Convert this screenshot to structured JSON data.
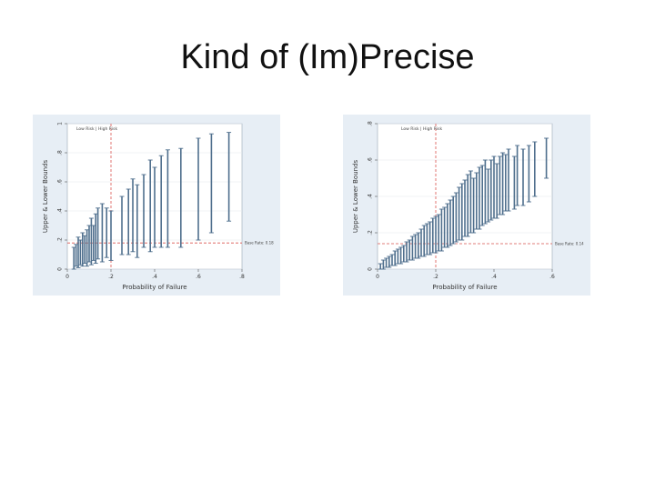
{
  "slide": {
    "title": "Kind of (Im)Precise"
  },
  "chart_data": [
    {
      "type": "errorbar",
      "ylabel": "Upper & Lower Bounds",
      "xlabel": "Probability of Failure",
      "xlim": [
        0,
        0.8
      ],
      "ylim": [
        0,
        1
      ],
      "xticks": [
        "0",
        ".2",
        ".4",
        ".6",
        ".8"
      ],
      "yticks": [
        "0",
        ".2",
        ".4",
        ".6",
        ".8",
        "1"
      ],
      "legend": "Low Risk | High Risk",
      "baseline_label": "Base Rate: 0.18",
      "baseline": 0.18,
      "divider_x": 0.2,
      "colors": {
        "bar": "#4f6f8d",
        "ref": "#d9534f",
        "panel": "#e7eef5",
        "plot": "#ffffff"
      },
      "bars": [
        {
          "x": 0.03,
          "lo": 0.0,
          "hi": 0.15
        },
        {
          "x": 0.04,
          "lo": 0.02,
          "hi": 0.17
        },
        {
          "x": 0.05,
          "lo": 0.01,
          "hi": 0.22
        },
        {
          "x": 0.06,
          "lo": 0.03,
          "hi": 0.2
        },
        {
          "x": 0.07,
          "lo": 0.02,
          "hi": 0.25
        },
        {
          "x": 0.08,
          "lo": 0.04,
          "hi": 0.23
        },
        {
          "x": 0.09,
          "lo": 0.02,
          "hi": 0.27
        },
        {
          "x": 0.1,
          "lo": 0.05,
          "hi": 0.3
        },
        {
          "x": 0.11,
          "lo": 0.03,
          "hi": 0.35
        },
        {
          "x": 0.12,
          "lo": 0.06,
          "hi": 0.3
        },
        {
          "x": 0.13,
          "lo": 0.04,
          "hi": 0.38
        },
        {
          "x": 0.14,
          "lo": 0.07,
          "hi": 0.42
        },
        {
          "x": 0.16,
          "lo": 0.05,
          "hi": 0.45
        },
        {
          "x": 0.18,
          "lo": 0.08,
          "hi": 0.42
        },
        {
          "x": 0.2,
          "lo": 0.06,
          "hi": 0.4
        },
        {
          "x": 0.25,
          "lo": 0.1,
          "hi": 0.5
        },
        {
          "x": 0.28,
          "lo": 0.1,
          "hi": 0.55
        },
        {
          "x": 0.3,
          "lo": 0.12,
          "hi": 0.62
        },
        {
          "x": 0.32,
          "lo": 0.08,
          "hi": 0.58
        },
        {
          "x": 0.35,
          "lo": 0.15,
          "hi": 0.65
        },
        {
          "x": 0.38,
          "lo": 0.12,
          "hi": 0.75
        },
        {
          "x": 0.4,
          "lo": 0.15,
          "hi": 0.7
        },
        {
          "x": 0.43,
          "lo": 0.15,
          "hi": 0.78
        },
        {
          "x": 0.46,
          "lo": 0.15,
          "hi": 0.82
        },
        {
          "x": 0.52,
          "lo": 0.15,
          "hi": 0.83
        },
        {
          "x": 0.6,
          "lo": 0.2,
          "hi": 0.9
        },
        {
          "x": 0.66,
          "lo": 0.25,
          "hi": 0.93
        },
        {
          "x": 0.74,
          "lo": 0.33,
          "hi": 0.94
        }
      ]
    },
    {
      "type": "errorbar",
      "ylabel": "Upper & Lower Bounds",
      "xlabel": "Probability of Failure",
      "xlim": [
        0,
        0.6
      ],
      "ylim": [
        0,
        0.8
      ],
      "xticks": [
        "0",
        ".2",
        ".4",
        ".6"
      ],
      "yticks": [
        "0",
        ".2",
        ".4",
        ".6",
        ".8"
      ],
      "legend": "Low Risk | High Risk",
      "baseline_label": "Base Rate: 0.14",
      "baseline": 0.14,
      "divider_x": 0.2,
      "colors": {
        "bar": "#4f6f8d",
        "ref": "#d9534f",
        "panel": "#e7eef5",
        "plot": "#ffffff"
      },
      "bars": [
        {
          "x": 0.01,
          "lo": 0.0,
          "hi": 0.03
        },
        {
          "x": 0.02,
          "lo": 0.0,
          "hi": 0.05
        },
        {
          "x": 0.03,
          "lo": 0.01,
          "hi": 0.06
        },
        {
          "x": 0.04,
          "lo": 0.01,
          "hi": 0.07
        },
        {
          "x": 0.05,
          "lo": 0.02,
          "hi": 0.08
        },
        {
          "x": 0.06,
          "lo": 0.02,
          "hi": 0.1
        },
        {
          "x": 0.07,
          "lo": 0.03,
          "hi": 0.11
        },
        {
          "x": 0.08,
          "lo": 0.03,
          "hi": 0.12
        },
        {
          "x": 0.09,
          "lo": 0.04,
          "hi": 0.13
        },
        {
          "x": 0.1,
          "lo": 0.04,
          "hi": 0.15
        },
        {
          "x": 0.11,
          "lo": 0.05,
          "hi": 0.16
        },
        {
          "x": 0.12,
          "lo": 0.05,
          "hi": 0.18
        },
        {
          "x": 0.13,
          "lo": 0.06,
          "hi": 0.19
        },
        {
          "x": 0.14,
          "lo": 0.06,
          "hi": 0.2
        },
        {
          "x": 0.15,
          "lo": 0.07,
          "hi": 0.22
        },
        {
          "x": 0.16,
          "lo": 0.07,
          "hi": 0.24
        },
        {
          "x": 0.17,
          "lo": 0.08,
          "hi": 0.25
        },
        {
          "x": 0.18,
          "lo": 0.08,
          "hi": 0.26
        },
        {
          "x": 0.19,
          "lo": 0.09,
          "hi": 0.28
        },
        {
          "x": 0.2,
          "lo": 0.09,
          "hi": 0.29
        },
        {
          "x": 0.21,
          "lo": 0.1,
          "hi": 0.3
        },
        {
          "x": 0.22,
          "lo": 0.1,
          "hi": 0.33
        },
        {
          "x": 0.23,
          "lo": 0.12,
          "hi": 0.34
        },
        {
          "x": 0.24,
          "lo": 0.12,
          "hi": 0.36
        },
        {
          "x": 0.25,
          "lo": 0.13,
          "hi": 0.38
        },
        {
          "x": 0.26,
          "lo": 0.14,
          "hi": 0.4
        },
        {
          "x": 0.27,
          "lo": 0.15,
          "hi": 0.42
        },
        {
          "x": 0.28,
          "lo": 0.16,
          "hi": 0.45
        },
        {
          "x": 0.29,
          "lo": 0.16,
          "hi": 0.47
        },
        {
          "x": 0.3,
          "lo": 0.18,
          "hi": 0.49
        },
        {
          "x": 0.31,
          "lo": 0.18,
          "hi": 0.52
        },
        {
          "x": 0.32,
          "lo": 0.2,
          "hi": 0.54
        },
        {
          "x": 0.33,
          "lo": 0.2,
          "hi": 0.5
        },
        {
          "x": 0.34,
          "lo": 0.22,
          "hi": 0.53
        },
        {
          "x": 0.35,
          "lo": 0.22,
          "hi": 0.56
        },
        {
          "x": 0.36,
          "lo": 0.24,
          "hi": 0.57
        },
        {
          "x": 0.37,
          "lo": 0.25,
          "hi": 0.6
        },
        {
          "x": 0.38,
          "lo": 0.26,
          "hi": 0.55
        },
        {
          "x": 0.39,
          "lo": 0.27,
          "hi": 0.6
        },
        {
          "x": 0.4,
          "lo": 0.28,
          "hi": 0.62
        },
        {
          "x": 0.41,
          "lo": 0.28,
          "hi": 0.58
        },
        {
          "x": 0.42,
          "lo": 0.3,
          "hi": 0.62
        },
        {
          "x": 0.43,
          "lo": 0.3,
          "hi": 0.64
        },
        {
          "x": 0.44,
          "lo": 0.32,
          "hi": 0.63
        },
        {
          "x": 0.45,
          "lo": 0.32,
          "hi": 0.66
        },
        {
          "x": 0.47,
          "lo": 0.33,
          "hi": 0.62
        },
        {
          "x": 0.48,
          "lo": 0.35,
          "hi": 0.68
        },
        {
          "x": 0.5,
          "lo": 0.35,
          "hi": 0.66
        },
        {
          "x": 0.52,
          "lo": 0.37,
          "hi": 0.68
        },
        {
          "x": 0.54,
          "lo": 0.4,
          "hi": 0.7
        },
        {
          "x": 0.58,
          "lo": 0.5,
          "hi": 0.72
        }
      ]
    }
  ]
}
